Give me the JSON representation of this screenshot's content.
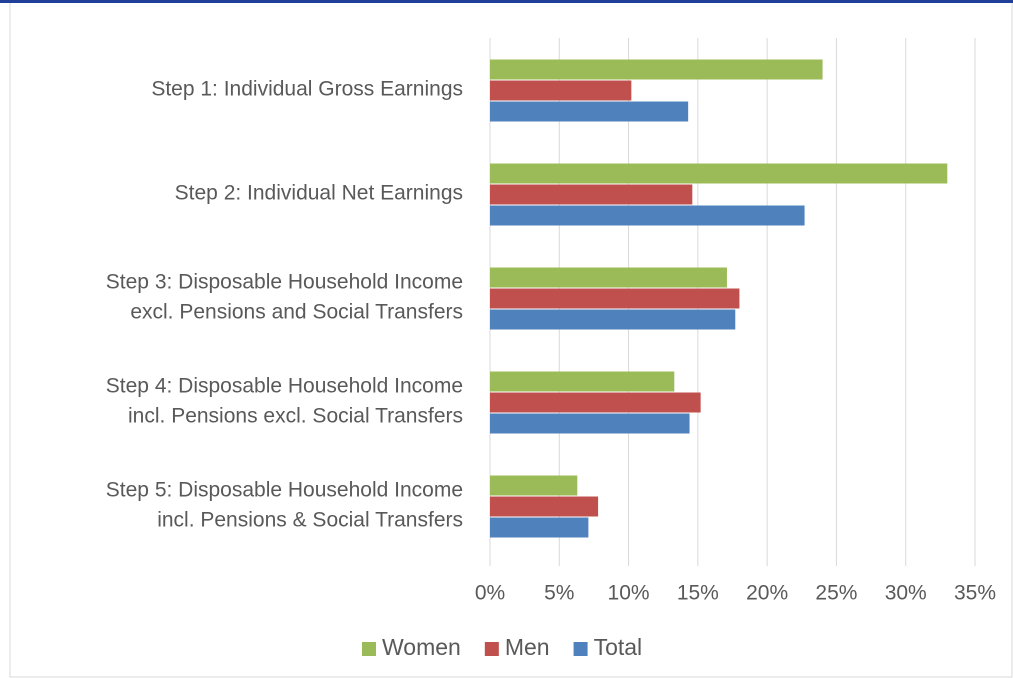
{
  "chart_data": {
    "type": "barh",
    "categories": [
      [
        "Step 1: Individual Gross Earnings"
      ],
      [
        "Step 2: Individual Net Earnings"
      ],
      [
        "Step 3: Disposable Household Income",
        "excl. Pensions and Social Transfers"
      ],
      [
        "Step 4: Disposable Household Income",
        "incl. Pensions excl. Social Transfers"
      ],
      [
        "Step 5: Disposable Household Income",
        "incl. Pensions & Social Transfers"
      ]
    ],
    "series": [
      {
        "name": "Women",
        "color": "#9bbb59",
        "values": [
          24.0,
          33.0,
          17.1,
          13.3,
          6.3
        ]
      },
      {
        "name": "Men",
        "color": "#c0504d",
        "values": [
          10.2,
          14.6,
          18.0,
          15.2,
          7.8
        ]
      },
      {
        "name": "Total",
        "color": "#4f81bd",
        "values": [
          14.3,
          22.7,
          17.7,
          14.4,
          7.1
        ]
      }
    ],
    "xlim": [
      0,
      35
    ],
    "xticks": [
      {
        "value": 0,
        "label": "0%"
      },
      {
        "value": 5,
        "label": "5%"
      },
      {
        "value": 10,
        "label": "10%"
      },
      {
        "value": 15,
        "label": "15%"
      },
      {
        "value": 20,
        "label": "20%"
      },
      {
        "value": 25,
        "label": "25%"
      },
      {
        "value": 30,
        "label": "30%"
      },
      {
        "value": 35,
        "label": "35%"
      }
    ],
    "grid": true,
    "legend": "bottom"
  }
}
